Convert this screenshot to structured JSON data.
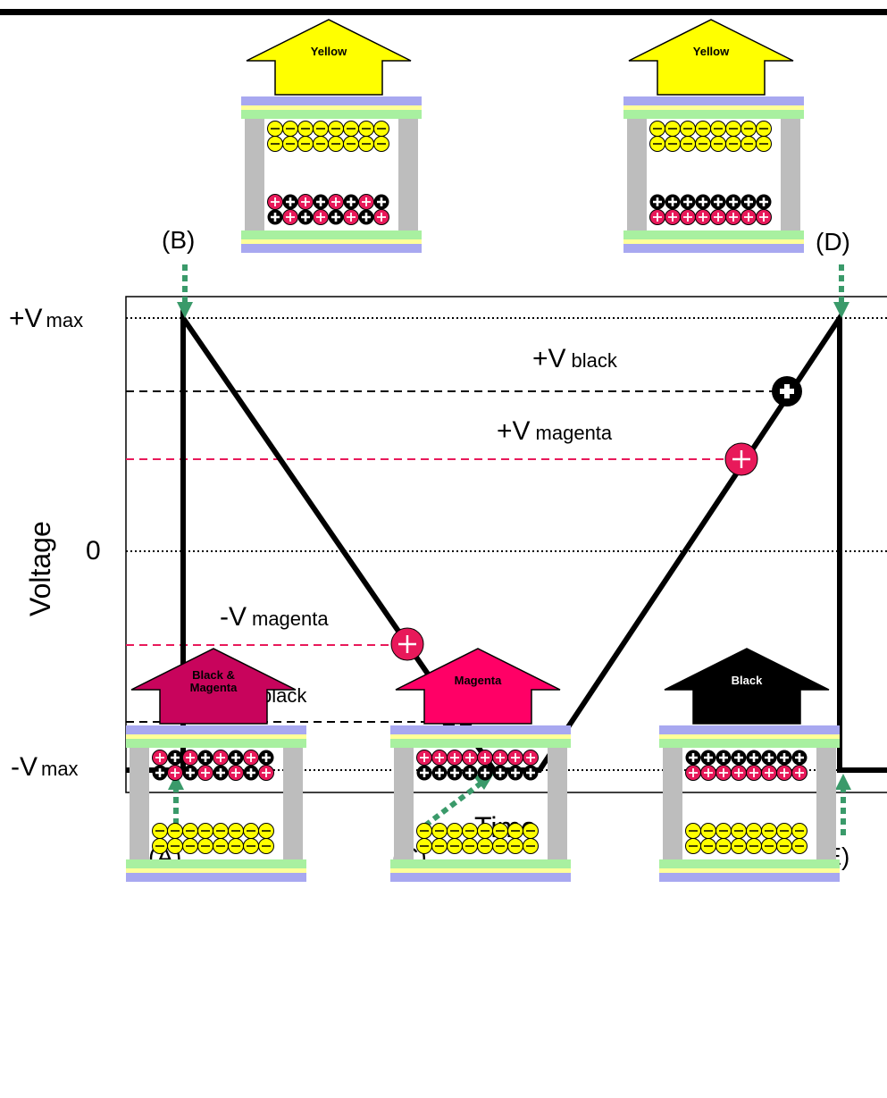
{
  "axes": {
    "ylabel": "Voltage",
    "xlabel": "Time"
  },
  "levels": [
    {
      "id": "vmax_pos",
      "main": "+V",
      "sub": "max",
      "style": "dotted",
      "color": "#000000"
    },
    {
      "id": "vblack_pos",
      "main": "+V",
      "sub": "black",
      "style": "dashed",
      "color": "#000000"
    },
    {
      "id": "vmagenta_pos",
      "main": "+V",
      "sub": "magenta",
      "style": "dashed",
      "color": "#e8195a"
    },
    {
      "id": "zero",
      "main": "0",
      "sub": "",
      "style": "dotted",
      "color": "#000000"
    },
    {
      "id": "vmagenta_neg",
      "main": "-V",
      "sub": "magenta",
      "style": "dashed",
      "color": "#e8195a"
    },
    {
      "id": "vblack_neg",
      "main": "-V",
      "sub": "black",
      "style": "dashed",
      "color": "#000000"
    },
    {
      "id": "vmax_neg",
      "main": "-V",
      "sub": "max",
      "style": "dotted",
      "color": "#000000"
    }
  ],
  "points": {
    "A": "(A)",
    "B": "(B)",
    "C": "(C)",
    "D": "(D)",
    "E": "(E)"
  },
  "cells": [
    {
      "id": "B",
      "arrow_text": [
        "Yellow"
      ],
      "arrow_color": "#ffff00",
      "arrow_text_color": "#000000",
      "top_charges": [
        "neg",
        "neg"
      ],
      "bottom_charges": [
        "pos_mb",
        "pos_bm"
      ]
    },
    {
      "id": "D",
      "arrow_text": [
        "Yellow"
      ],
      "arrow_color": "#ffff00",
      "arrow_text_color": "#000000",
      "top_charges": [
        "neg",
        "neg"
      ],
      "bottom_charges": [
        "pos_b",
        "pos_m"
      ]
    },
    {
      "id": "A",
      "arrow_text": [
        "Black &",
        "Magenta"
      ],
      "arrow_color": "#c8045c",
      "arrow_text_color": "#000000",
      "top_charges": [
        "pos_mb",
        "pos_bm"
      ],
      "bottom_charges": [
        "neg",
        "neg"
      ]
    },
    {
      "id": "C",
      "arrow_text": [
        "Magenta"
      ],
      "arrow_color": "#ff0066",
      "arrow_text_color": "#000000",
      "top_charges": [
        "pos_m",
        "pos_b"
      ],
      "bottom_charges": [
        "neg",
        "neg"
      ]
    },
    {
      "id": "E",
      "arrow_text": [
        "Black"
      ],
      "arrow_color": "#000000",
      "arrow_text_color": "#ffffff",
      "top_charges": [
        "pos_b",
        "pos_m"
      ],
      "bottom_charges": [
        "neg",
        "neg"
      ]
    }
  ],
  "colors": {
    "magenta": "#e8195a",
    "yellow": "#ffff00",
    "guide_arrow": "#3a9a6a",
    "electrode_blue": "#a8a8f0",
    "electrode_green": "#a8f0a0",
    "electrode_yellow": "#ffff99",
    "wall_gray": "#bdbdbd"
  }
}
